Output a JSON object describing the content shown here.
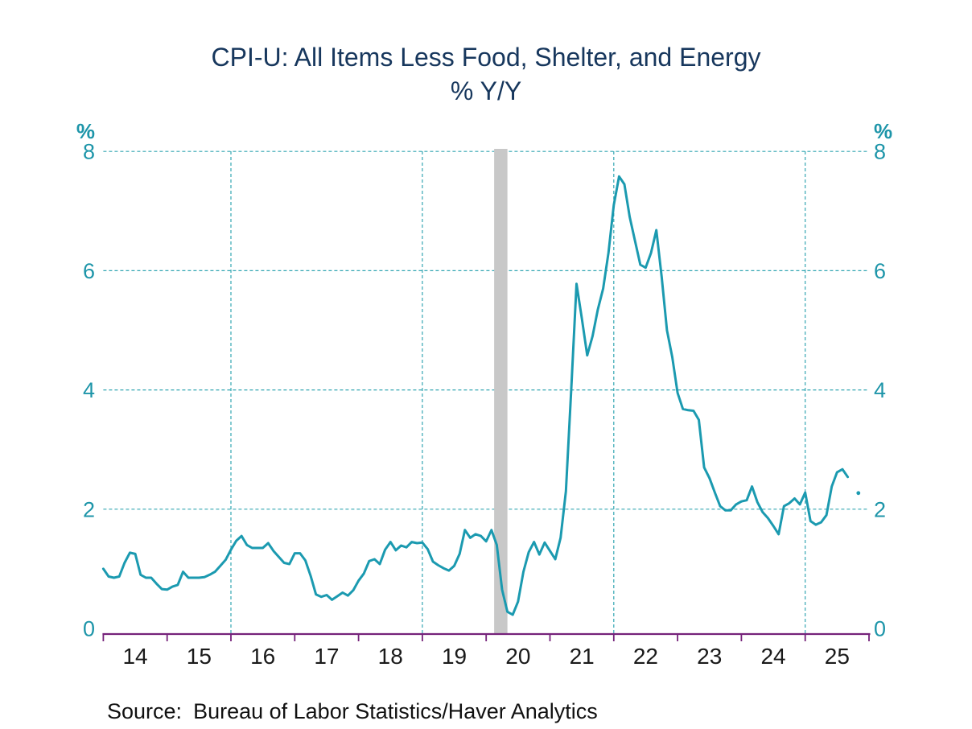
{
  "title": "CPI-U: All Items Less Food, Shelter, and Energy",
  "subtitle": "% Y/Y",
  "source": {
    "label": "Source:",
    "text": "Bureau of Labor Statistics/Haver Analytics"
  },
  "colors": {
    "background": "#ffffff",
    "title": "#17375d",
    "line": "#1b9ab0",
    "axis_labels": "#1d95a9",
    "gridline": "#33a6b2",
    "x_axis": "#75227a",
    "x_labels": "#1a1a1a",
    "recession_band": "#c8c8c8",
    "source_text": "#111111"
  },
  "chart_data": {
    "type": "line",
    "title": "CPI-U: All Items Less Food, Shelter, and Energy",
    "ylabel": "%",
    "xlabel": "",
    "grid": "dashed teal, horizontal at 2,4,6,8 and vertical every 3 years",
    "legend": "none",
    "y_axis": {
      "label": "%",
      "min": 0,
      "max": 8,
      "ticks": [
        0,
        2,
        4,
        6,
        8
      ],
      "gridline_values": [
        2,
        4,
        6,
        8
      ],
      "sides": [
        "left",
        "right"
      ]
    },
    "x_axis": {
      "tick_years": [
        2014,
        2015,
        2016,
        2017,
        2018,
        2019,
        2020,
        2021,
        2022,
        2023,
        2024,
        2025,
        2026
      ],
      "labels": [
        "14",
        "15",
        "16",
        "17",
        "18",
        "19",
        "20",
        "21",
        "22",
        "23",
        "24",
        "25"
      ],
      "gridline_years": [
        2016,
        2019,
        2022,
        2025
      ]
    },
    "recession_band": {
      "start": "2020-02",
      "end": "2020-04"
    },
    "series": [
      {
        "name": "CPI-U: All Items Less Food, Shelter, and Energy, % Y/Y",
        "start": "2014-01",
        "frequency": "monthly",
        "values": [
          1.0,
          0.87,
          0.85,
          0.87,
          1.1,
          1.27,
          1.25,
          0.9,
          0.85,
          0.85,
          0.75,
          0.66,
          0.65,
          0.7,
          0.73,
          0.95,
          0.85,
          0.85,
          0.85,
          0.86,
          0.9,
          0.95,
          1.05,
          1.15,
          1.32,
          1.47,
          1.55,
          1.4,
          1.35,
          1.35,
          1.35,
          1.43,
          1.3,
          1.2,
          1.1,
          1.08,
          1.26,
          1.26,
          1.14,
          0.88,
          0.57,
          0.53,
          0.56,
          0.48,
          0.54,
          0.6,
          0.55,
          0.64,
          0.8,
          0.92,
          1.13,
          1.16,
          1.08,
          1.32,
          1.45,
          1.31,
          1.39,
          1.36,
          1.45,
          1.43,
          1.44,
          1.33,
          1.12,
          1.06,
          1.01,
          0.97,
          1.05,
          1.25,
          1.65,
          1.52,
          1.58,
          1.55,
          1.46,
          1.65,
          1.4,
          0.65,
          0.28,
          0.23,
          0.45,
          0.95,
          1.28,
          1.45,
          1.24,
          1.44,
          1.3,
          1.16,
          1.52,
          2.3,
          4.0,
          5.78,
          5.2,
          4.58,
          4.9,
          5.35,
          5.7,
          6.3,
          7.1,
          7.58,
          7.45,
          6.9,
          6.5,
          6.1,
          6.05,
          6.3,
          6.68,
          5.9,
          5.0,
          4.55,
          3.95,
          3.68,
          3.66,
          3.65,
          3.5,
          2.7,
          2.52,
          2.28,
          2.05,
          1.98,
          1.98,
          2.08,
          2.13,
          2.15,
          2.38,
          2.12,
          1.95,
          1.85,
          1.72,
          1.58,
          2.05,
          2.1,
          2.18,
          2.08,
          2.28,
          1.8,
          1.74,
          1.78,
          1.9,
          2.38,
          2.62,
          2.67,
          2.54
        ]
      }
    ],
    "isolated_point": {
      "date": "2025-11",
      "value": 2.27
    }
  }
}
